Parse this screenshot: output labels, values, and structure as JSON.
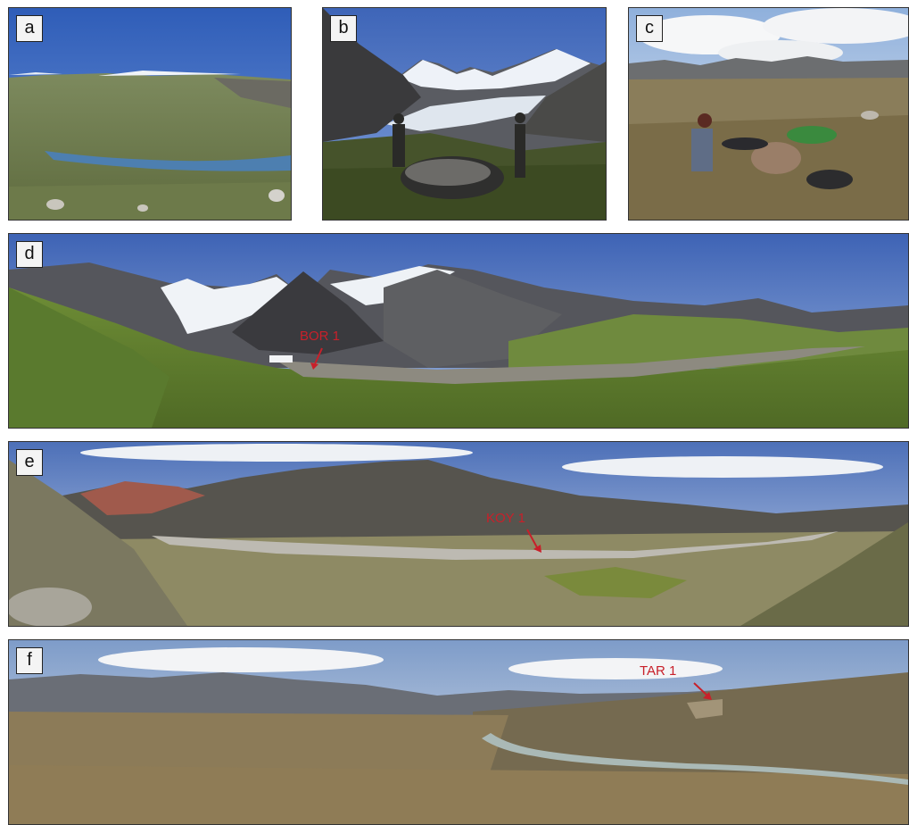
{
  "panels": {
    "a": {
      "label": "a"
    },
    "b": {
      "label": "b"
    },
    "c": {
      "label": "c"
    },
    "d": {
      "label": "d",
      "site": "BOR 1"
    },
    "e": {
      "label": "e",
      "site": "KOY 1"
    },
    "f": {
      "label": "f",
      "site": "TAR 1"
    }
  },
  "colors": {
    "site_label": "#c8202a",
    "label_box": "#f4f4f4"
  }
}
